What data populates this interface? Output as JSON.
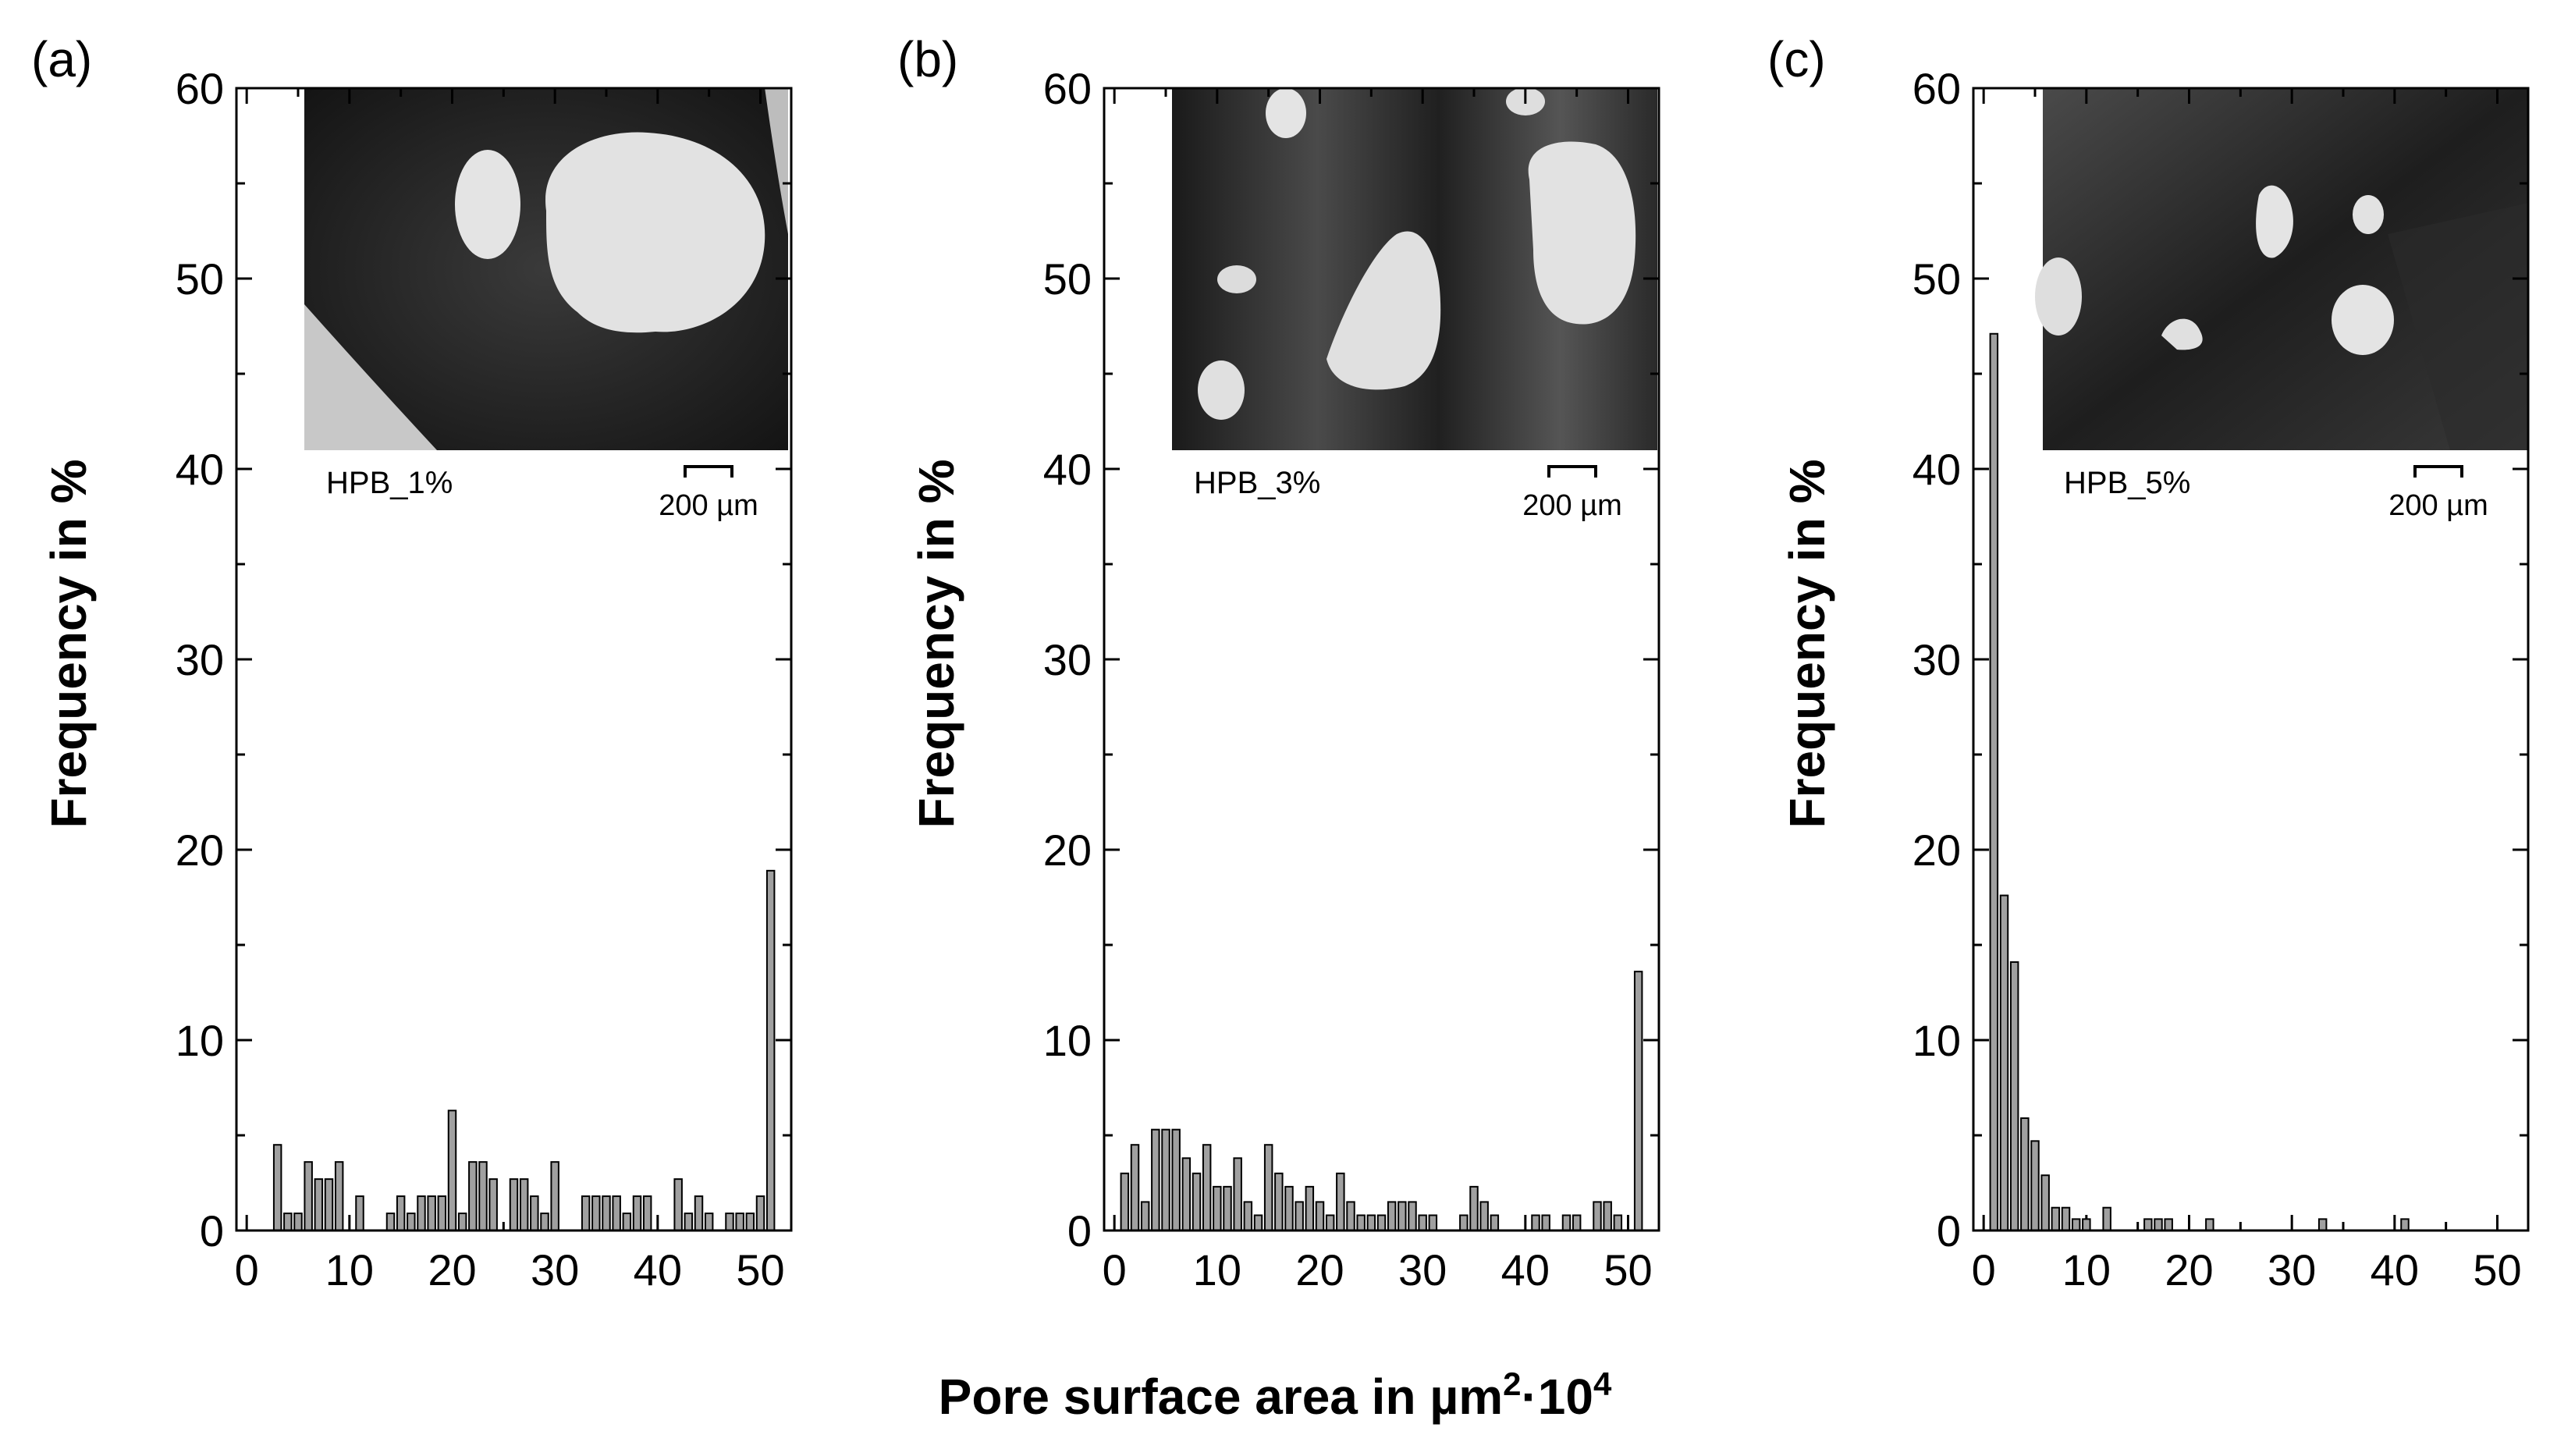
{
  "x_axis_title": "Pore surface area in µm²·10⁴",
  "x_axis_title_parts": {
    "base": "Pore surface area in µm",
    "sup1": "2",
    "mid": "·10",
    "sup2": "4"
  },
  "chart_data": [
    {
      "type": "bar",
      "panel_label": "(a)",
      "ylabel": "Frequency in %",
      "xlabel": "Pore surface area in µm²·10⁴",
      "xlim": [
        -1,
        53
      ],
      "ylim": [
        0,
        60
      ],
      "xticks": [
        0,
        10,
        20,
        30,
        40,
        50
      ],
      "yticks": [
        0,
        10,
        20,
        30,
        40,
        50,
        60
      ],
      "bar_color": "#a0a0a0",
      "inset": {
        "sample_label": "HPB_1%",
        "scale_bar": "200 µm"
      },
      "x": [
        3,
        4,
        5,
        6,
        7,
        8,
        9,
        11,
        14,
        15,
        16,
        17,
        18,
        19,
        20,
        21,
        22,
        23,
        24,
        26,
        27,
        28,
        29,
        30,
        33,
        34,
        35,
        36,
        37,
        38,
        39,
        42,
        43,
        44,
        45,
        47,
        48,
        49,
        50,
        51
      ],
      "values": [
        4.5,
        0.9,
        0.9,
        3.6,
        2.7,
        2.7,
        3.6,
        1.8,
        0.9,
        1.8,
        0.9,
        1.8,
        1.8,
        1.8,
        6.3,
        0.9,
        3.6,
        3.6,
        2.7,
        2.7,
        2.7,
        1.8,
        0.9,
        3.6,
        1.8,
        1.8,
        1.8,
        1.8,
        0.9,
        1.8,
        1.8,
        2.7,
        0.9,
        1.8,
        0.9,
        0.9,
        0.9,
        0.9,
        1.8,
        18.9
      ]
    },
    {
      "type": "bar",
      "panel_label": "(b)",
      "ylabel": "Frequency in %",
      "xlabel": "Pore surface area in µm²·10⁴",
      "xlim": [
        -1,
        53
      ],
      "ylim": [
        0,
        60
      ],
      "xticks": [
        0,
        10,
        20,
        30,
        40,
        50
      ],
      "yticks": [
        0,
        10,
        20,
        30,
        40,
        50,
        60
      ],
      "bar_color": "#a0a0a0",
      "inset": {
        "sample_label": "HPB_3%",
        "scale_bar": "200 µm"
      },
      "x": [
        1,
        2,
        3,
        4,
        5,
        6,
        7,
        8,
        9,
        10,
        11,
        12,
        13,
        14,
        15,
        16,
        17,
        18,
        19,
        20,
        21,
        22,
        23,
        24,
        25,
        26,
        27,
        28,
        29,
        30,
        31,
        34,
        35,
        36,
        37,
        41,
        42,
        44,
        45,
        47,
        48,
        49,
        51
      ],
      "values": [
        3.0,
        4.5,
        1.5,
        5.3,
        5.3,
        5.3,
        3.8,
        3.0,
        4.5,
        2.3,
        2.3,
        3.8,
        1.5,
        0.8,
        4.5,
        3.0,
        2.3,
        1.5,
        2.3,
        1.5,
        0.8,
        3.0,
        1.5,
        0.8,
        0.8,
        0.8,
        1.5,
        1.5,
        1.5,
        0.8,
        0.8,
        0.8,
        2.3,
        1.5,
        0.8,
        0.8,
        0.8,
        0.8,
        0.8,
        1.5,
        1.5,
        0.8,
        13.6
      ]
    },
    {
      "type": "bar",
      "panel_label": "(c)",
      "ylabel": "Frequency in %",
      "xlabel": "Pore surface area in µm²·10⁴",
      "xlim": [
        -1,
        53
      ],
      "ylim": [
        0,
        60
      ],
      "xticks": [
        0,
        10,
        20,
        30,
        40,
        50
      ],
      "yticks": [
        0,
        10,
        20,
        30,
        40,
        50,
        60
      ],
      "bar_color": "#a0a0a0",
      "inset": {
        "sample_label": "HPB_5%",
        "scale_bar": "200 µm"
      },
      "x": [
        1,
        2,
        3,
        4,
        5,
        6,
        7,
        8,
        9,
        10,
        12,
        16,
        17,
        18,
        22,
        33,
        41
      ],
      "values": [
        47.1,
        17.6,
        14.1,
        5.9,
        4.7,
        2.9,
        1.2,
        1.2,
        0.6,
        0.6,
        1.2,
        0.6,
        0.6,
        0.6,
        0.6,
        0.6,
        0.6
      ]
    }
  ]
}
